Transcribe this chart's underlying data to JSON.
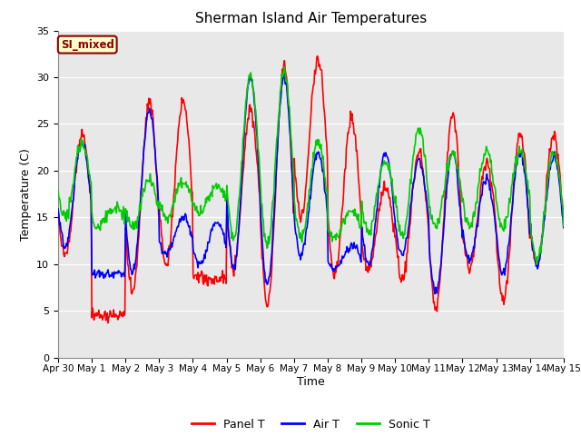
{
  "title": "Sherman Island Air Temperatures",
  "xlabel": "Time",
  "ylabel": "Temperature (C)",
  "ylim": [
    0,
    35
  ],
  "yticks": [
    0,
    5,
    10,
    15,
    20,
    25,
    30,
    35
  ],
  "n_days": 15,
  "pts_per_day": 48,
  "x_tick_labels": [
    "Apr 30",
    "May 1",
    "May 2",
    "May 3",
    "May 4",
    "May 5",
    "May 6",
    "May 7",
    "May 8",
    "May 9",
    "May 10",
    "May 11",
    "May 12",
    "May 13",
    "May 14",
    "May 15"
  ],
  "annotation_text": "SI_mixed",
  "annotation_color": "#8B0000",
  "annotation_bg": "#FFFFCC",
  "background_color": "#E8E8E8",
  "panel_T_color": "#FF0000",
  "air_T_color": "#0000FF",
  "sonic_T_color": "#00CC00",
  "line_width": 1.2,
  "legend_labels": [
    "Panel T",
    "Air T",
    "Sonic T"
  ],
  "day_peaks_panel": [
    24.0,
    4.5,
    27.5,
    27.5,
    8.5,
    26.5,
    31.2,
    32.0,
    25.5,
    18.5,
    22.0,
    26.0,
    21.0,
    24.0,
    23.5
  ],
  "day_troughs_panel": [
    11.0,
    4.5,
    7.0,
    10.0,
    8.5,
    10.0,
    5.5,
    15.0,
    9.0,
    9.5,
    8.5,
    5.5,
    9.5,
    6.0,
    10.0
  ],
  "day_peaks_air": [
    23.0,
    9.0,
    26.5,
    15.0,
    14.5,
    30.0,
    30.0,
    22.0,
    12.0,
    22.0,
    21.0,
    22.0,
    19.0,
    22.0,
    21.5
  ],
  "day_troughs_air": [
    12.0,
    9.0,
    9.0,
    11.0,
    10.0,
    9.5,
    8.0,
    11.0,
    9.5,
    10.0,
    11.0,
    7.0,
    10.5,
    9.0,
    10.0
  ],
  "day_peaks_sonic": [
    23.0,
    16.0,
    19.0,
    19.0,
    18.5,
    30.0,
    30.5,
    23.0,
    15.5,
    21.0,
    24.5,
    22.0,
    22.0,
    22.0,
    22.0
  ],
  "day_troughs_sonic": [
    15.0,
    14.0,
    14.0,
    15.0,
    15.5,
    13.0,
    12.0,
    13.0,
    13.0,
    13.5,
    13.0,
    14.0,
    14.0,
    14.0,
    10.5
  ]
}
